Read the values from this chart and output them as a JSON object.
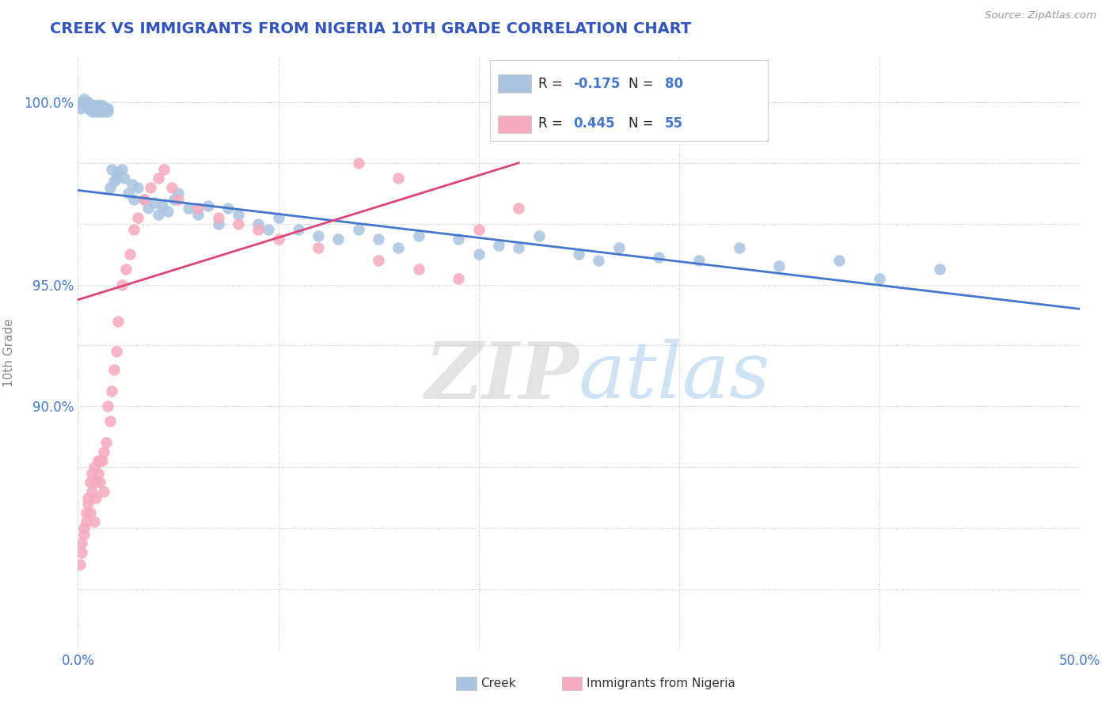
{
  "title": "CREEK VS IMMIGRANTS FROM NIGERIA 10TH GRADE CORRELATION CHART",
  "source": "Source: ZipAtlas.com",
  "ylabel": "10th Grade",
  "xlim": [
    0.0,
    0.5
  ],
  "ylim": [
    0.82,
    1.015
  ],
  "xtick_vals": [
    0.0,
    0.1,
    0.2,
    0.3,
    0.4,
    0.5
  ],
  "xticklabels": [
    "0.0%",
    "",
    "",
    "",
    "",
    "50.0%"
  ],
  "ytick_vals": [
    0.84,
    0.86,
    0.88,
    0.9,
    0.92,
    0.94,
    0.96,
    0.98,
    1.0
  ],
  "yticklabels": [
    "",
    "",
    "",
    "90.0%",
    "",
    "95.0%",
    "",
    "",
    "100.0%"
  ],
  "creek_color": "#aac4e0",
  "nigeria_color": "#f5aabf",
  "creek_line_color": "#4477cc",
  "nigeria_line_color": "#dd4477",
  "creek_R": -0.175,
  "creek_N": 80,
  "nigeria_R": 0.445,
  "nigeria_N": 55,
  "title_color": "#3355bb",
  "tick_color": "#4477cc",
  "creek_line_x": [
    0.0,
    0.5
  ],
  "creek_line_y": [
    0.971,
    0.932
  ],
  "nigeria_line_x": [
    0.0,
    0.22
  ],
  "nigeria_line_y": [
    0.935,
    0.98
  ],
  "creek_x": [
    0.001,
    0.002,
    0.003,
    0.003,
    0.004,
    0.004,
    0.005,
    0.005,
    0.005,
    0.006,
    0.006,
    0.007,
    0.007,
    0.007,
    0.008,
    0.008,
    0.009,
    0.009,
    0.009,
    0.01,
    0.01,
    0.011,
    0.011,
    0.012,
    0.012,
    0.013,
    0.013,
    0.014,
    0.015,
    0.015,
    0.016,
    0.017,
    0.018,
    0.019,
    0.02,
    0.022,
    0.023,
    0.025,
    0.027,
    0.028,
    0.03,
    0.033,
    0.035,
    0.038,
    0.04,
    0.042,
    0.045,
    0.048,
    0.05,
    0.055,
    0.06,
    0.065,
    0.07,
    0.075,
    0.08,
    0.09,
    0.095,
    0.1,
    0.11,
    0.12,
    0.13,
    0.14,
    0.15,
    0.16,
    0.17,
    0.19,
    0.2,
    0.21,
    0.22,
    0.23,
    0.25,
    0.26,
    0.27,
    0.29,
    0.31,
    0.33,
    0.35,
    0.38,
    0.4,
    0.43
  ],
  "creek_y": [
    0.998,
    1.0,
    0.999,
    1.001,
    0.999,
    1.0,
    0.999,
    0.998,
    1.0,
    0.999,
    0.998,
    0.999,
    0.997,
    0.998,
    0.999,
    0.998,
    0.997,
    0.999,
    0.998,
    0.999,
    0.998,
    0.999,
    0.997,
    0.998,
    0.999,
    0.998,
    0.997,
    0.998,
    0.997,
    0.998,
    0.972,
    0.978,
    0.974,
    0.975,
    0.977,
    0.978,
    0.975,
    0.97,
    0.973,
    0.968,
    0.972,
    0.968,
    0.965,
    0.967,
    0.963,
    0.966,
    0.964,
    0.968,
    0.97,
    0.965,
    0.963,
    0.966,
    0.96,
    0.965,
    0.963,
    0.96,
    0.958,
    0.962,
    0.958,
    0.956,
    0.955,
    0.958,
    0.955,
    0.952,
    0.956,
    0.955,
    0.95,
    0.953,
    0.952,
    0.956,
    0.95,
    0.948,
    0.952,
    0.949,
    0.948,
    0.952,
    0.946,
    0.948,
    0.942,
    0.945
  ],
  "nigeria_x": [
    0.001,
    0.002,
    0.002,
    0.003,
    0.003,
    0.004,
    0.004,
    0.005,
    0.005,
    0.006,
    0.006,
    0.007,
    0.007,
    0.008,
    0.008,
    0.009,
    0.009,
    0.01,
    0.01,
    0.011,
    0.011,
    0.012,
    0.013,
    0.013,
    0.014,
    0.015,
    0.016,
    0.017,
    0.018,
    0.019,
    0.02,
    0.022,
    0.024,
    0.026,
    0.028,
    0.03,
    0.033,
    0.036,
    0.04,
    0.043,
    0.047,
    0.05,
    0.06,
    0.07,
    0.08,
    0.09,
    0.1,
    0.12,
    0.15,
    0.17,
    0.19,
    0.22,
    0.2,
    0.16,
    0.14
  ],
  "nigeria_y": [
    0.848,
    0.855,
    0.852,
    0.858,
    0.86,
    0.862,
    0.865,
    0.87,
    0.868,
    0.865,
    0.875,
    0.872,
    0.878,
    0.862,
    0.88,
    0.87,
    0.875,
    0.878,
    0.882,
    0.875,
    0.882,
    0.882,
    0.885,
    0.872,
    0.888,
    0.9,
    0.895,
    0.905,
    0.912,
    0.918,
    0.928,
    0.94,
    0.945,
    0.95,
    0.958,
    0.962,
    0.968,
    0.972,
    0.975,
    0.978,
    0.972,
    0.968,
    0.965,
    0.962,
    0.96,
    0.958,
    0.955,
    0.952,
    0.948,
    0.945,
    0.942,
    0.965,
    0.958,
    0.975,
    0.98
  ]
}
